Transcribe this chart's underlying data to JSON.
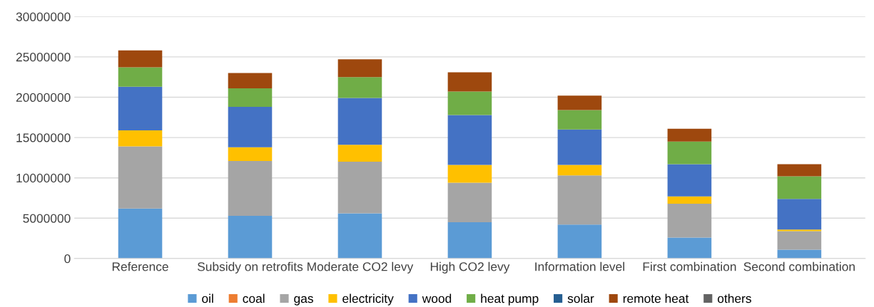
{
  "chart_data": {
    "type": "bar",
    "stacked": true,
    "categories": [
      "Reference",
      "Subsidy on retrofits",
      "Moderate CO2 levy",
      "High CO2 levy",
      "Information level",
      "First combination",
      "Second combination"
    ],
    "series": [
      {
        "name": "oil",
        "color": "#5b9bd5",
        "values": [
          6200000,
          5300000,
          5600000,
          4500000,
          4200000,
          2600000,
          1100000
        ]
      },
      {
        "name": "coal",
        "color": "#ed7d31",
        "values": [
          0,
          0,
          0,
          0,
          0,
          0,
          0
        ]
      },
      {
        "name": "gas",
        "color": "#a5a5a5",
        "values": [
          7700000,
          6800000,
          6400000,
          4900000,
          6100000,
          4200000,
          2300000
        ]
      },
      {
        "name": "electricity",
        "color": "#ffc000",
        "values": [
          2000000,
          1700000,
          2100000,
          2200000,
          1300000,
          900000,
          200000
        ]
      },
      {
        "name": "wood",
        "color": "#4472c4",
        "values": [
          5400000,
          5000000,
          5800000,
          6200000,
          4400000,
          4000000,
          3800000
        ]
      },
      {
        "name": "heat pump",
        "color": "#70ad47",
        "values": [
          2400000,
          2300000,
          2600000,
          2900000,
          2400000,
          2800000,
          2800000
        ]
      },
      {
        "name": "solar",
        "color": "#255e91",
        "values": [
          0,
          0,
          0,
          0,
          0,
          0,
          0
        ]
      },
      {
        "name": "remote heat",
        "color": "#9e480e",
        "values": [
          2100000,
          1900000,
          2200000,
          2400000,
          1800000,
          1600000,
          1500000
        ]
      },
      {
        "name": "others",
        "color": "#636363",
        "values": [
          0,
          0,
          0,
          0,
          0,
          0,
          0
        ]
      }
    ],
    "ylim": [
      0,
      30000000
    ],
    "yticks": [
      0,
      5000000,
      10000000,
      15000000,
      20000000,
      25000000,
      30000000
    ],
    "grid": "y",
    "legend": "bottom"
  }
}
